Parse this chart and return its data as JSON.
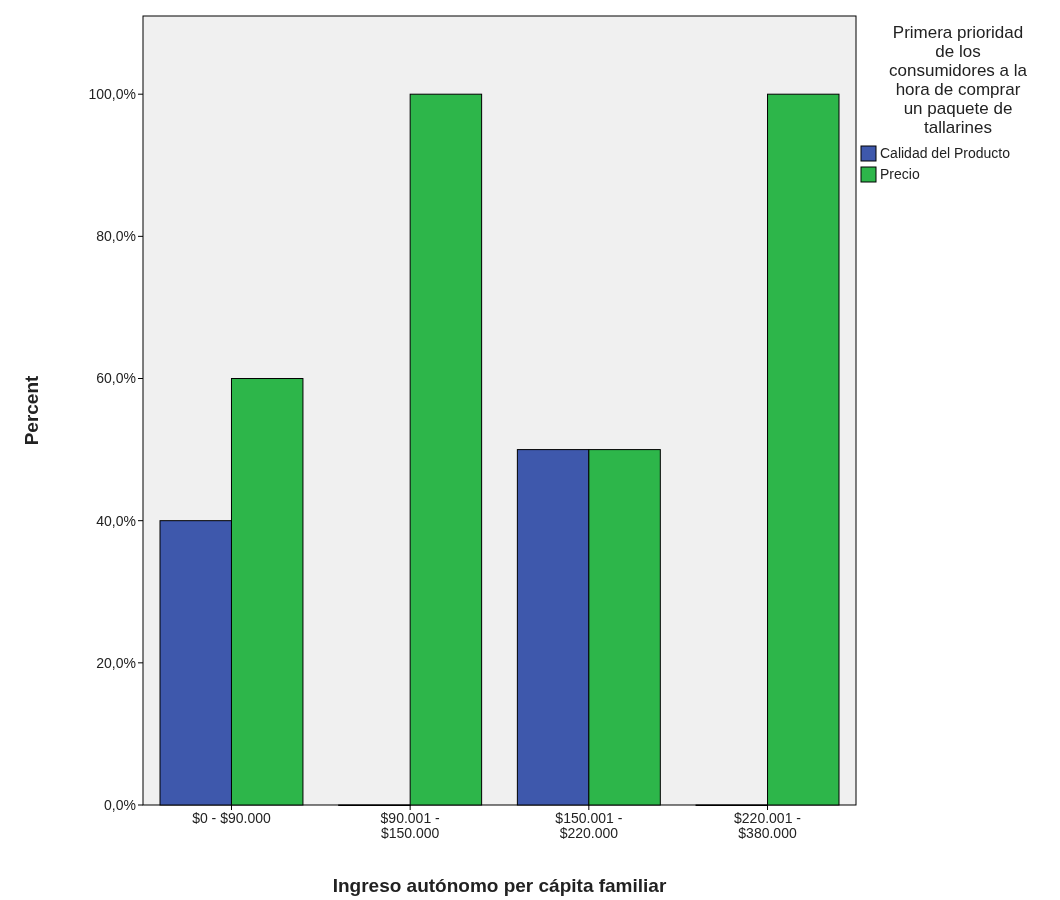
{
  "chart_data": {
    "type": "bar",
    "xlabel": "Ingreso autónomo per cápita familiar",
    "ylabel": "Percent",
    "legend_title": "Primera prioridad de los consumidores a la hora de comprar un paquete de tallarines",
    "categories": [
      "$0 - $90.000",
      "$90.001 - $150.000",
      "$150.001 - $220.000",
      "$220.001 - $380.000"
    ],
    "series": [
      {
        "name": "Calidad del Producto",
        "color": "#3e58ac",
        "values": [
          40,
          0,
          50,
          0
        ]
      },
      {
        "name": "Precio",
        "color": "#2db64a",
        "values": [
          60,
          100,
          50,
          100
        ]
      }
    ],
    "ylim": [
      0,
      111
    ],
    "yticks": [
      {
        "value": 0,
        "label": "0,0%"
      },
      {
        "value": 20,
        "label": "20,0%"
      },
      {
        "value": 40,
        "label": "40,0%"
      },
      {
        "value": 60,
        "label": "60,0%"
      },
      {
        "value": 80,
        "label": "80,0%"
      },
      {
        "value": 100,
        "label": "100,0%"
      }
    ],
    "grid": false,
    "legend": "top right"
  }
}
